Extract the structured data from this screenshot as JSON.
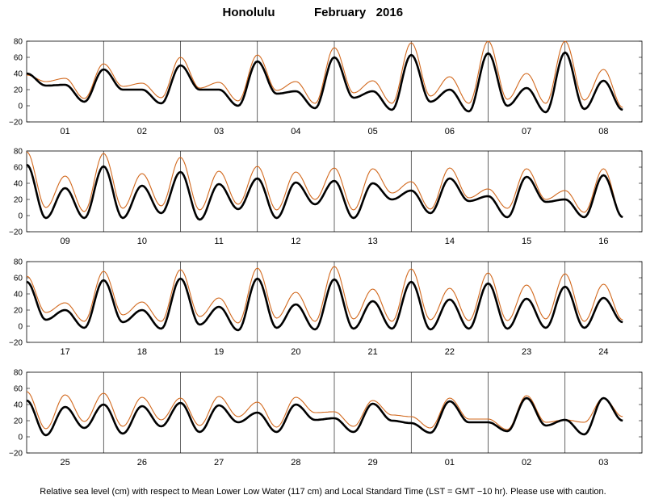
{
  "header": {
    "location": "Honolulu",
    "month_year": "February   2016"
  },
  "footer": {
    "note": "Relative sea level (cm) with respect to Mean Lower Low Water (117 cm) and Local Standard Time (LST = GMT −10 hr). Please use with caution."
  },
  "colors": {
    "predicted": "#000000",
    "observed": "#d2691e",
    "frame": "#000000"
  },
  "chart_data": {
    "type": "line",
    "ylim": [
      -20,
      80
    ],
    "yticks": [
      "80",
      "60",
      "40",
      "20",
      "0",
      "−20"
    ],
    "grid": false,
    "panels": [
      {
        "days": [
          "01",
          "02",
          "03",
          "04",
          "05",
          "06",
          "07",
          "08"
        ],
        "range": 4,
        "series": [
          {
            "values": [
              40,
              25,
              26,
              5,
              45,
              20,
              20,
              3,
              50,
              20,
              20,
              0,
              55,
              15,
              18,
              -3,
              60,
              10,
              18,
              -5,
              63,
              5,
              20,
              -7,
              65,
              0,
              22,
              -8,
              66,
              -4,
              31,
              -5
            ]
          },
          {
            "values": [
              38,
              30,
              34,
              9,
              52,
              24,
              28,
              10,
              60,
              22,
              29,
              6,
              63,
              19,
              30,
              3,
              72,
              16,
              31,
              3,
              78,
              12,
              36,
              3,
              80,
              8,
              40,
              3,
              80,
              7,
              45,
              -2
            ]
          }
        ]
      },
      {
        "days": [
          "09",
          "10",
          "11",
          "12",
          "13",
          "14",
          "15",
          "16"
        ],
        "range": 4,
        "series": [
          {
            "values": [
              63,
              -3,
              34,
              -3,
              61,
              -3,
              37,
              3,
              54,
              -5,
              39,
              8,
              46,
              -3,
              41,
              14,
              43,
              -3,
              40,
              20,
              31,
              3,
              46,
              18,
              24,
              -2,
              48,
              17,
              20,
              -2,
              50,
              -2
            ]
          },
          {
            "values": [
              79,
              10,
              49,
              5,
              77,
              9,
              52,
              12,
              72,
              7,
              55,
              14,
              61,
              7,
              54,
              20,
              59,
              7,
              58,
              28,
              42,
              8,
              59,
              22,
              33,
              9,
              58,
              20,
              31,
              4,
              58,
              -2
            ]
          }
        ]
      },
      {
        "days": [
          "17",
          "18",
          "19",
          "20",
          "21",
          "22",
          "23",
          "24"
        ],
        "range": 4,
        "series": [
          {
            "values": [
              55,
              8,
              20,
              -2,
              57,
              5,
              20,
              -3,
              59,
              2,
              24,
              -5,
              59,
              -2,
              27,
              -4,
              58,
              -3,
              31,
              -3,
              55,
              -4,
              33,
              -3,
              53,
              -3,
              34,
              -2,
              49,
              -2,
              35,
              5
            ]
          },
          {
            "values": [
              62,
              17,
              29,
              6,
              68,
              14,
              30,
              6,
              70,
              12,
              35,
              4,
              72,
              10,
              42,
              6,
              74,
              9,
              46,
              6,
              71,
              8,
              47,
              7,
              66,
              7,
              51,
              9,
              65,
              6,
              52,
              8
            ]
          }
        ]
      },
      {
        "days": [
          "25",
          "26",
          "27",
          "28",
          "29",
          "01",
          "02",
          "03"
        ],
        "range": 4,
        "series": [
          {
            "values": [
              45,
              2,
              37,
              11,
              40,
              4,
              38,
              13,
              42,
              6,
              39,
              18,
              30,
              6,
              40,
              21,
              23,
              6,
              41,
              20,
              17,
              5,
              44,
              18,
              18,
              7,
              48,
              14,
              21,
              3,
              48,
              20
            ]
          },
          {
            "values": [
              56,
              10,
              52,
              19,
              54,
              13,
              49,
              21,
              48,
              14,
              50,
              25,
              43,
              12,
              49,
              30,
              31,
              13,
              45,
              27,
              25,
              11,
              48,
              22,
              22,
              9,
              51,
              18,
              21,
              18,
              48,
              25
            ]
          }
        ]
      }
    ]
  }
}
